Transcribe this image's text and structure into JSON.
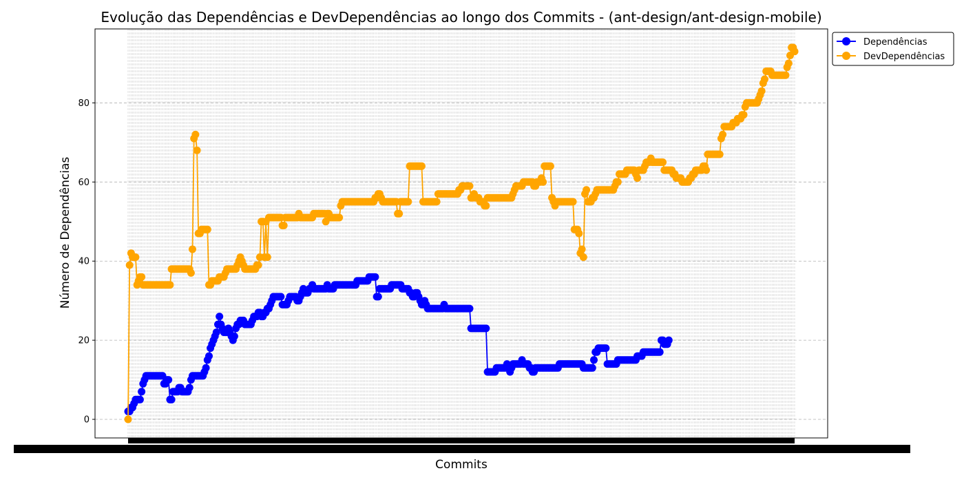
{
  "chart_data": {
    "type": "line",
    "title": "Evolução das Dependências e DevDependências ao longo dos Commits - (ant-design/ant-design-mobile)",
    "xlabel": "Commits",
    "ylabel": "Número de Dependências",
    "ylim": [
      -4.7,
      98.7
    ],
    "yticks": [
      0,
      20,
      40,
      60,
      80
    ],
    "grid": true,
    "grid_style": "dashed",
    "legend_position": "outside-top-right",
    "x_tick_labels_note": "",
    "series": [
      {
        "name": "Dependências",
        "color": "#0000ff",
        "values": [
          2,
          2,
          3,
          3,
          4,
          5,
          5,
          5,
          5,
          7,
          9,
          10,
          11,
          11,
          11,
          11,
          11,
          11,
          11,
          11,
          11,
          11,
          11,
          11,
          9,
          9,
          10,
          10,
          5,
          5,
          7,
          7,
          7,
          7,
          8,
          8,
          7,
          7,
          7,
          7,
          7,
          8,
          10,
          11,
          11,
          11,
          11,
          11,
          11,
          11,
          11,
          12,
          13,
          15,
          16,
          18,
          19,
          20,
          21,
          22,
          24,
          26,
          24,
          23,
          22,
          22,
          22,
          23,
          22,
          21,
          20,
          21,
          23,
          24,
          24,
          25,
          25,
          25,
          24,
          24,
          24,
          24,
          24,
          25,
          26,
          26,
          26,
          27,
          27,
          26,
          26,
          27,
          27,
          28,
          28,
          29,
          30,
          31,
          31,
          31,
          31,
          31,
          31,
          29,
          29,
          29,
          29,
          30,
          31,
          31,
          31,
          31,
          31,
          30,
          30,
          31,
          32,
          33,
          32,
          32,
          32,
          33,
          33,
          34,
          33,
          33,
          33,
          33,
          33,
          33,
          33,
          33,
          33,
          34,
          33,
          33,
          33,
          33,
          34,
          34,
          34,
          34,
          34,
          34,
          34,
          34,
          34,
          34,
          34,
          34,
          34,
          34,
          34,
          35,
          35,
          35,
          35,
          35,
          35,
          35,
          35,
          36,
          36,
          36,
          36,
          36,
          31,
          31,
          33,
          33,
          33,
          33,
          33,
          33,
          33,
          33,
          34,
          34,
          34,
          34,
          34,
          34,
          34,
          33,
          33,
          33,
          33,
          33,
          32,
          32,
          31,
          31,
          32,
          32,
          31,
          30,
          29,
          29,
          30,
          29,
          28,
          28,
          28,
          28,
          28,
          28,
          28,
          28,
          28,
          28,
          28,
          29,
          28,
          28,
          28,
          28,
          28,
          28,
          28,
          28,
          28,
          28,
          28,
          28,
          28,
          28,
          28,
          28,
          28,
          23,
          23,
          23,
          23,
          23,
          23,
          23,
          23,
          23,
          23,
          23,
          12,
          12,
          12,
          12,
          12,
          12,
          13,
          13,
          13,
          13,
          13,
          13,
          13,
          14,
          13,
          12,
          13,
          14,
          14,
          14,
          14,
          14,
          14,
          15,
          14,
          14,
          14,
          14,
          13,
          13,
          12,
          12,
          13,
          13,
          13,
          13,
          13,
          13,
          13,
          13,
          13,
          13,
          13,
          13,
          13,
          13,
          13,
          13,
          14,
          14,
          14,
          14,
          14,
          14,
          14,
          14,
          14,
          14,
          14,
          14,
          14,
          14,
          14,
          14,
          13,
          13,
          13,
          13,
          13,
          13,
          13,
          15,
          17,
          17,
          18,
          18,
          18,
          18,
          18,
          18,
          14,
          14,
          14,
          14,
          14,
          14,
          14,
          15,
          15,
          15,
          15,
          15,
          15,
          15,
          15,
          15,
          15,
          15,
          15,
          15,
          16,
          16,
          16,
          16,
          17,
          17,
          17,
          17,
          17,
          17,
          17,
          17,
          17,
          17,
          17,
          17,
          20,
          20,
          19,
          19,
          19,
          20
        ]
      },
      {
        "name": "DevDependências",
        "color": "#ffa500",
        "values": [
          0,
          39,
          42,
          41,
          41,
          41,
          34,
          35,
          36,
          36,
          34,
          34,
          34,
          34,
          34,
          34,
          34,
          34,
          34,
          34,
          34,
          34,
          34,
          34,
          34,
          34,
          34,
          34,
          34,
          38,
          38,
          38,
          38,
          38,
          38,
          38,
          38,
          38,
          38,
          38,
          38,
          38,
          37,
          43,
          71,
          72,
          68,
          47,
          47,
          48,
          48,
          48,
          48,
          48,
          34,
          34,
          35,
          35,
          35,
          35,
          35,
          36,
          36,
          36,
          36,
          37,
          38,
          38,
          38,
          38,
          38,
          38,
          38,
          39,
          40,
          41,
          40,
          39,
          38,
          38,
          38,
          38,
          38,
          38,
          38,
          38,
          39,
          39,
          41,
          50,
          50,
          41,
          50,
          41,
          51,
          51,
          51,
          51,
          51,
          51,
          51,
          51,
          51,
          49,
          49,
          51,
          51,
          51,
          51,
          51,
          51,
          51,
          51,
          51,
          52,
          51,
          51,
          51,
          51,
          51,
          51,
          51,
          51,
          51,
          52,
          52,
          52,
          52,
          52,
          52,
          52,
          52,
          50,
          52,
          52,
          51,
          51,
          51,
          51,
          51,
          51,
          51,
          54,
          55,
          55,
          55,
          55,
          55,
          55,
          55,
          55,
          55,
          55,
          55,
          55,
          55,
          55,
          55,
          55,
          55,
          55,
          55,
          55,
          55,
          55,
          56,
          56,
          57,
          57,
          56,
          55,
          55,
          55,
          55,
          55,
          55,
          55,
          55,
          55,
          55,
          52,
          52,
          55,
          55,
          55,
          55,
          55,
          55,
          64,
          64,
          64,
          64,
          64,
          64,
          64,
          64,
          64,
          55,
          55,
          55,
          55,
          55,
          55,
          55,
          55,
          55,
          55,
          57,
          57,
          57,
          57,
          57,
          57,
          57,
          57,
          57,
          57,
          57,
          57,
          57,
          57,
          58,
          58,
          59,
          59,
          59,
          59,
          59,
          59,
          56,
          56,
          57,
          56,
          56,
          56,
          55,
          55,
          55,
          54,
          54,
          56,
          56,
          56,
          56,
          56,
          56,
          56,
          56,
          56,
          56,
          56,
          56,
          56,
          56,
          56,
          56,
          56,
          57,
          58,
          59,
          59,
          59,
          59,
          59,
          60,
          60,
          60,
          60,
          60,
          60,
          60,
          59,
          59,
          60,
          60,
          60,
          61,
          60,
          64,
          64,
          64,
          64,
          64,
          56,
          55,
          54,
          55,
          55,
          55,
          55,
          55,
          55,
          55,
          55,
          55,
          55,
          55,
          55,
          48,
          48,
          48,
          47,
          42,
          43,
          41,
          57,
          58,
          55,
          55,
          55,
          56,
          56,
          57,
          58,
          58,
          58,
          58,
          58,
          58,
          58,
          58,
          58,
          58,
          58,
          58,
          59,
          60,
          60,
          62,
          62,
          62,
          62,
          62,
          63,
          63,
          63,
          63,
          63,
          63,
          62,
          61,
          63,
          63,
          63,
          63,
          64,
          65,
          65,
          65,
          66,
          65,
          65,
          65,
          65,
          65,
          65,
          65,
          65,
          63,
          63,
          63,
          63,
          63,
          63,
          62,
          62,
          61,
          61,
          61,
          61,
          60,
          60,
          60,
          60,
          60,
          61,
          61,
          62,
          62,
          63,
          63,
          63,
          63,
          63,
          64,
          64,
          63,
          67,
          67,
          67,
          67,
          67,
          67,
          67,
          67,
          67,
          71,
          72,
          74,
          74,
          74,
          74,
          74,
          74,
          75,
          75,
          75,
          76,
          76,
          76,
          77,
          77,
          79,
          80,
          80,
          80,
          80,
          80,
          80,
          80,
          80,
          81,
          82,
          83,
          85,
          86,
          88,
          88,
          88,
          88,
          87,
          87,
          87,
          87,
          87,
          87,
          87,
          87,
          87,
          87,
          89,
          90,
          92,
          94,
          94,
          93
        ]
      }
    ]
  }
}
